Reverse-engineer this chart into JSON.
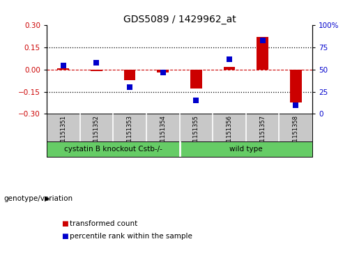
{
  "title": "GDS5089 / 1429962_at",
  "samples": [
    "GSM1151351",
    "GSM1151352",
    "GSM1151353",
    "GSM1151354",
    "GSM1151355",
    "GSM1151356",
    "GSM1151357",
    "GSM1151358"
  ],
  "red_values": [
    0.01,
    -0.008,
    -0.07,
    -0.018,
    -0.13,
    0.018,
    0.22,
    -0.22
  ],
  "blue_values_pct": [
    55,
    58,
    30,
    47,
    15,
    62,
    83,
    10
  ],
  "ylim": [
    -0.3,
    0.3
  ],
  "yticks_left": [
    -0.3,
    -0.15,
    0.0,
    0.15,
    0.3
  ],
  "yticks_right": [
    0,
    25,
    50,
    75,
    100
  ],
  "right_ylim": [
    0,
    100
  ],
  "hlines": [
    0.15,
    -0.15
  ],
  "n_group1": 4,
  "n_group2": 4,
  "group1_label": "cystatin B knockout Cstb-/-",
  "group2_label": "wild type",
  "group_label": "genotype/variation",
  "legend1_label": "transformed count",
  "legend2_label": "percentile rank within the sample",
  "red_color": "#cc0000",
  "blue_color": "#0000cc",
  "green_color": "#66cc66",
  "gray_color": "#c8c8c8",
  "bar_width": 0.35
}
